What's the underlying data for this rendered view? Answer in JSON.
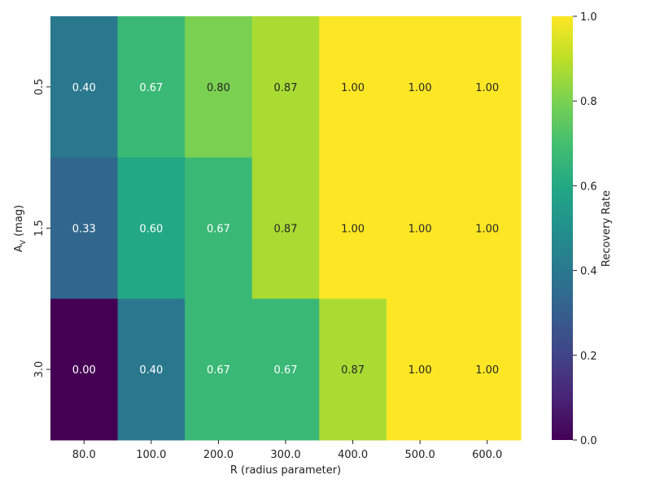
{
  "chart_data": {
    "type": "heatmap",
    "title": "",
    "xlabel": "R (radius parameter)",
    "ylabel_main": "A",
    "ylabel_sub": "V",
    "ylabel_suffix": " (mag)",
    "x_categories": [
      "80.0",
      "100.0",
      "200.0",
      "300.0",
      "400.0",
      "500.0",
      "600.0"
    ],
    "y_categories": [
      "0.5",
      "1.5",
      "3.0"
    ],
    "values": [
      [
        0.4,
        0.67,
        0.8,
        0.87,
        1.0,
        1.0,
        1.0
      ],
      [
        0.33,
        0.6,
        0.67,
        0.87,
        1.0,
        1.0,
        1.0
      ],
      [
        0.0,
        0.4,
        0.67,
        0.67,
        0.87,
        1.0,
        1.0
      ]
    ],
    "colormap": "viridis",
    "vmin": 0.0,
    "vmax": 1.0,
    "colorbar": {
      "label": "Recovery Rate",
      "ticks": [
        "0.0",
        "0.2",
        "0.4",
        "0.6",
        "0.8",
        "1.0"
      ]
    }
  }
}
